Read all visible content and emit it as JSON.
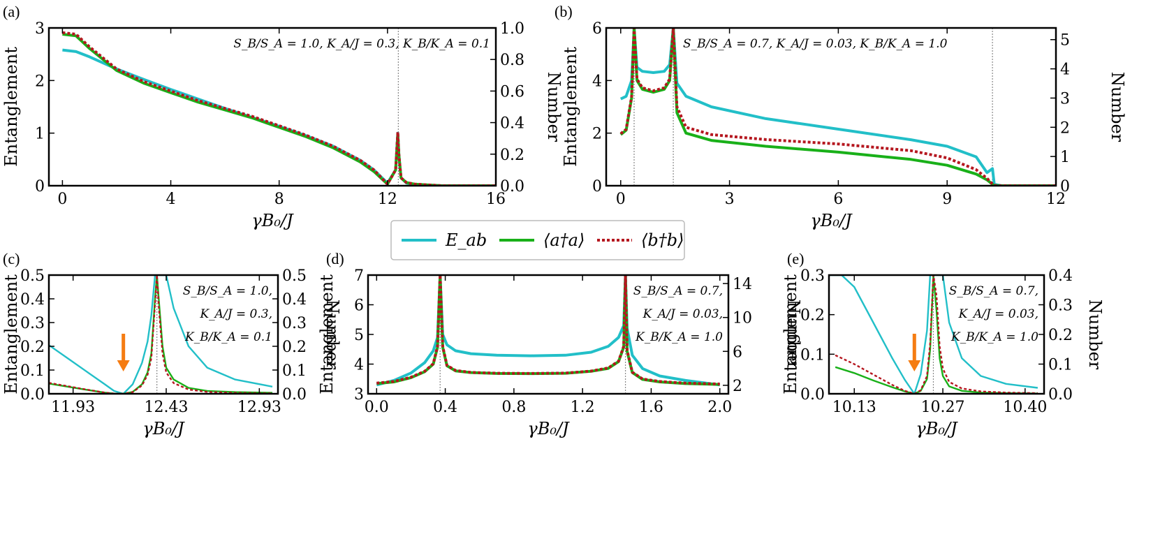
{
  "legend": {
    "items": [
      {
        "label": "E_ab",
        "color": "#22bfc8",
        "style": "solid"
      },
      {
        "label": "⟨a†a⟩",
        "color": "#19b019",
        "style": "solid"
      },
      {
        "label": "⟨b†b⟩",
        "color": "#b5171f",
        "style": "dotted"
      }
    ]
  },
  "chart_data": [
    {
      "id": "a",
      "panel_label": "(a)",
      "type": "line",
      "xlabel": "γB₀/J",
      "ylabel": "Entanglement",
      "ylabel_right": "Number",
      "xlim": [
        -0.5,
        16
      ],
      "ylim": [
        0,
        3
      ],
      "ylim_right": [
        0,
        1.0
      ],
      "xticks": [
        "0",
        "4",
        "8",
        "12",
        "16"
      ],
      "xtick_values": [
        0,
        4,
        8,
        12,
        16
      ],
      "yticks": [
        "0",
        "1",
        "2",
        "3"
      ],
      "ytick_values": [
        0,
        1,
        2,
        3
      ],
      "yticks_right": [
        "0.0",
        "0.2",
        "0.4",
        "0.6",
        "0.8",
        "1.0"
      ],
      "ytick_values_right": [
        0,
        0.2,
        0.4,
        0.6,
        0.8,
        1.0
      ],
      "vlines": [
        12.4
      ],
      "annotations": [
        "S_B/S_A = 1.0,  K_A/J = 0.3,  K_B/K_A = 0.1"
      ],
      "series": [
        {
          "name": "E_ab",
          "axis": "left",
          "x": [
            0,
            0.5,
            1,
            2,
            3,
            4,
            5,
            6,
            7,
            8,
            9,
            10,
            11,
            11.5,
            12.0,
            12.3,
            12.38,
            12.42,
            12.5,
            12.7,
            13,
            14,
            16
          ],
          "y": [
            2.58,
            2.55,
            2.45,
            2.22,
            2.02,
            1.83,
            1.65,
            1.47,
            1.3,
            1.13,
            0.95,
            0.75,
            0.48,
            0.3,
            0.05,
            0.3,
            1.0,
            0.6,
            0.15,
            0.05,
            0.02,
            0.0,
            0.0
          ]
        },
        {
          "name": "⟨a†a⟩",
          "axis": "right",
          "x": [
            0,
            0.5,
            1,
            2,
            3,
            4,
            5,
            6,
            7,
            8,
            9,
            10,
            11,
            11.5,
            12.0,
            12.3,
            12.38,
            12.42,
            12.5,
            12.7,
            13,
            14,
            16
          ],
          "y": [
            0.96,
            0.95,
            0.87,
            0.73,
            0.65,
            0.59,
            0.53,
            0.48,
            0.43,
            0.37,
            0.31,
            0.24,
            0.15,
            0.09,
            0.01,
            0.1,
            0.33,
            0.2,
            0.05,
            0.02,
            0.01,
            0.0,
            0.0
          ]
        },
        {
          "name": "⟨b†b⟩",
          "axis": "right",
          "x": [
            0,
            0.5,
            1,
            2,
            3,
            4,
            5,
            6,
            7,
            8,
            9,
            10,
            11,
            11.5,
            12.0,
            12.3,
            12.38,
            12.42,
            12.5,
            12.7,
            13,
            14,
            16
          ],
          "y": [
            0.97,
            0.96,
            0.88,
            0.74,
            0.66,
            0.6,
            0.54,
            0.49,
            0.44,
            0.38,
            0.32,
            0.25,
            0.16,
            0.1,
            0.01,
            0.1,
            0.34,
            0.2,
            0.05,
            0.02,
            0.01,
            0.0,
            0.0
          ]
        }
      ]
    },
    {
      "id": "b",
      "panel_label": "(b)",
      "type": "line",
      "xlabel": "γB₀/J",
      "ylabel": "Entanglement",
      "ylabel_right": "Number",
      "xlim": [
        -0.4,
        12
      ],
      "ylim": [
        0,
        6
      ],
      "ylim_right": [
        0,
        5.4
      ],
      "xticks": [
        "0",
        "3",
        "6",
        "9",
        "12"
      ],
      "xtick_values": [
        0,
        3,
        6,
        9,
        12
      ],
      "yticks": [
        "0",
        "2",
        "4",
        "6"
      ],
      "ytick_values": [
        0,
        2,
        4,
        6
      ],
      "yticks_right": [
        "0",
        "1",
        "2",
        "3",
        "4",
        "5"
      ],
      "ytick_values_right": [
        0,
        1,
        2,
        3,
        4,
        5
      ],
      "vlines": [
        0.37,
        1.45,
        10.25
      ],
      "annotations": [
        "S_B/S_A = 0.7,  K_A/J = 0.03,  K_B/K_A = 1.0"
      ],
      "series": [
        {
          "name": "E_ab",
          "axis": "left",
          "x": [
            0,
            0.15,
            0.3,
            0.37,
            0.45,
            0.6,
            0.9,
            1.2,
            1.35,
            1.45,
            1.55,
            1.8,
            2.5,
            4,
            6,
            8,
            9,
            9.8,
            10.1,
            10.25,
            10.3,
            10.5,
            12
          ],
          "y": [
            3.3,
            3.4,
            4.0,
            6.0,
            4.5,
            4.35,
            4.3,
            4.35,
            4.6,
            6.0,
            3.9,
            3.4,
            3.0,
            2.55,
            2.15,
            1.75,
            1.5,
            1.1,
            0.5,
            0.65,
            0.05,
            0.0,
            0.0
          ]
        },
        {
          "name": "⟨a†a⟩",
          "axis": "right",
          "x": [
            0,
            0.15,
            0.3,
            0.37,
            0.45,
            0.6,
            0.9,
            1.2,
            1.35,
            1.45,
            1.55,
            1.8,
            2.5,
            4,
            6,
            8,
            9,
            9.8,
            10.1,
            10.25,
            10.3,
            10.5,
            12
          ],
          "y": [
            1.75,
            1.9,
            3.0,
            5.4,
            3.6,
            3.3,
            3.2,
            3.3,
            3.6,
            5.4,
            2.5,
            1.8,
            1.55,
            1.35,
            1.15,
            0.9,
            0.7,
            0.4,
            0.2,
            0.05,
            0.01,
            0.0,
            0.0
          ]
        },
        {
          "name": "⟨b†b⟩",
          "axis": "right",
          "x": [
            0,
            0.15,
            0.3,
            0.37,
            0.45,
            0.6,
            0.9,
            1.2,
            1.35,
            1.45,
            1.55,
            1.8,
            2.5,
            4,
            6,
            8,
            9,
            9.8,
            10.1,
            10.25,
            10.3,
            10.5,
            12
          ],
          "y": [
            1.78,
            1.93,
            3.05,
            5.4,
            3.65,
            3.35,
            3.25,
            3.35,
            3.65,
            5.4,
            2.7,
            2.0,
            1.75,
            1.58,
            1.43,
            1.2,
            0.95,
            0.55,
            0.25,
            0.06,
            0.01,
            0.0,
            0.0
          ]
        }
      ]
    },
    {
      "id": "c",
      "panel_label": "(c)",
      "type": "line",
      "xlabel": "γB₀/J",
      "ylabel": "Entanglement",
      "ylabel_right": "Number",
      "xlim": [
        11.8,
        13.03
      ],
      "ylim": [
        0,
        0.5
      ],
      "ylim_right": [
        0,
        0.5
      ],
      "xticks": [
        "11.93",
        "12.43",
        "12.93"
      ],
      "xtick_values": [
        11.93,
        12.43,
        12.93
      ],
      "yticks": [
        "0.0",
        "0.1",
        "0.2",
        "0.3",
        "0.4",
        "0.5"
      ],
      "ytick_values": [
        0,
        0.1,
        0.2,
        0.3,
        0.4,
        0.5
      ],
      "yticks_right": [
        "0.0",
        "0.1",
        "0.2",
        "0.3",
        "0.4",
        "0.5"
      ],
      "ytick_values_right": [
        0,
        0.1,
        0.2,
        0.3,
        0.4,
        0.5
      ],
      "vlines": [
        12.38
      ],
      "arrow_x": 12.2,
      "annotations": [
        "S_B/S_A = 1.0,",
        "K_A/J = 0.3,",
        "K_B/K_A = 0.1"
      ],
      "series": [
        {
          "name": "E_ab",
          "axis": "left",
          "x": [
            11.8,
            11.9,
            12.0,
            12.1,
            12.15,
            12.2,
            12.25,
            12.3,
            12.33,
            12.35,
            12.37,
            12.38,
            12.4,
            12.43,
            12.47,
            12.55,
            12.65,
            12.8,
            13.0
          ],
          "y": [
            0.205,
            0.15,
            0.095,
            0.04,
            0.012,
            0.0,
            0.04,
            0.13,
            0.22,
            0.33,
            0.5,
            0.5,
            0.5,
            0.5,
            0.36,
            0.2,
            0.11,
            0.06,
            0.03
          ]
        },
        {
          "name": "⟨a†a⟩",
          "axis": "right",
          "x": [
            11.8,
            11.9,
            12.0,
            12.1,
            12.15,
            12.2,
            12.25,
            12.3,
            12.33,
            12.35,
            12.37,
            12.38,
            12.39,
            12.41,
            12.43,
            12.47,
            12.55,
            12.65,
            12.8,
            13.0
          ],
          "y": [
            0.043,
            0.03,
            0.017,
            0.005,
            0.001,
            0.0,
            0.008,
            0.04,
            0.09,
            0.17,
            0.4,
            0.5,
            0.4,
            0.2,
            0.11,
            0.06,
            0.025,
            0.012,
            0.007,
            0.004
          ]
        },
        {
          "name": "⟨b†b⟩",
          "axis": "right",
          "x": [
            11.8,
            11.9,
            12.0,
            12.1,
            12.15,
            12.2,
            12.25,
            12.3,
            12.33,
            12.35,
            12.37,
            12.38,
            12.39,
            12.41,
            12.43,
            12.47,
            12.55,
            12.65,
            12.8,
            13.0
          ],
          "y": [
            0.046,
            0.032,
            0.018,
            0.005,
            0.001,
            0.0,
            0.007,
            0.035,
            0.08,
            0.15,
            0.38,
            0.5,
            0.37,
            0.17,
            0.09,
            0.045,
            0.018,
            0.008,
            0.004,
            0.002
          ]
        }
      ]
    },
    {
      "id": "d",
      "panel_label": "(d)",
      "type": "line",
      "xlabel": "γB₀/J",
      "ylabel": "Entanglement",
      "ylabel_right": "Number",
      "xlim": [
        -0.05,
        2.05
      ],
      "ylim": [
        3,
        7
      ],
      "ylim_right": [
        1,
        15
      ],
      "xticks": [
        "0.0",
        "0.4",
        "0.8",
        "1.2",
        "1.6",
        "2.0"
      ],
      "xtick_values": [
        0,
        0.4,
        0.8,
        1.2,
        1.6,
        2.0
      ],
      "yticks": [
        "3",
        "4",
        "5",
        "6",
        "7"
      ],
      "ytick_values": [
        3,
        4,
        5,
        6,
        7
      ],
      "yticks_right": [
        "2",
        "6",
        "10",
        "14"
      ],
      "ytick_values_right": [
        2,
        6,
        10,
        14
      ],
      "vlines": [
        0.37,
        1.45
      ],
      "annotations": [
        "S_B/S_A = 0.7,",
        "K_A/J = 0.03,",
        "K_B/K_A = 1.0"
      ],
      "series": [
        {
          "name": "E_ab",
          "axis": "left",
          "x": [
            0,
            0.1,
            0.2,
            0.28,
            0.33,
            0.355,
            0.37,
            0.385,
            0.41,
            0.46,
            0.55,
            0.7,
            0.9,
            1.1,
            1.25,
            1.35,
            1.41,
            1.44,
            1.45,
            1.46,
            1.49,
            1.55,
            1.65,
            1.8,
            2.0
          ],
          "y": [
            3.3,
            3.45,
            3.7,
            4.05,
            4.45,
            4.9,
            7.0,
            5.0,
            4.65,
            4.45,
            4.35,
            4.3,
            4.28,
            4.3,
            4.4,
            4.6,
            4.9,
            5.3,
            7.0,
            5.2,
            4.3,
            3.85,
            3.6,
            3.45,
            3.3
          ]
        },
        {
          "name": "⟨a†a⟩",
          "axis": "right",
          "x": [
            0,
            0.1,
            0.2,
            0.28,
            0.33,
            0.355,
            0.37,
            0.385,
            0.41,
            0.46,
            0.55,
            0.7,
            0.9,
            1.1,
            1.25,
            1.35,
            1.41,
            1.44,
            1.45,
            1.46,
            1.49,
            1.55,
            1.65,
            1.8,
            2.0
          ],
          "y": [
            2.2,
            2.4,
            2.9,
            3.6,
            4.5,
            6.5,
            15.0,
            6.5,
            4.3,
            3.7,
            3.5,
            3.4,
            3.38,
            3.42,
            3.65,
            4.0,
            4.8,
            6.5,
            15.0,
            6.0,
            3.5,
            2.7,
            2.4,
            2.2,
            2.1
          ]
        },
        {
          "name": "⟨b†b⟩",
          "axis": "right",
          "x": [
            0,
            0.1,
            0.2,
            0.28,
            0.33,
            0.355,
            0.37,
            0.385,
            0.41,
            0.46,
            0.55,
            0.7,
            0.9,
            1.1,
            1.25,
            1.35,
            1.41,
            1.44,
            1.45,
            1.46,
            1.49,
            1.55,
            1.65,
            1.8,
            2.0
          ],
          "y": [
            2.25,
            2.45,
            2.95,
            3.65,
            4.55,
            6.6,
            15.0,
            6.6,
            4.35,
            3.75,
            3.52,
            3.42,
            3.4,
            3.44,
            3.68,
            4.05,
            4.85,
            6.6,
            15.0,
            6.1,
            3.55,
            2.75,
            2.45,
            2.25,
            2.15
          ]
        }
      ]
    },
    {
      "id": "e",
      "panel_label": "(e)",
      "type": "line",
      "xlabel": "γB₀/J",
      "ylabel": "Entanglement",
      "ylabel_right": "Number",
      "xlim": [
        10.09,
        10.43
      ],
      "ylim": [
        0,
        0.3
      ],
      "ylim_right": [
        0,
        0.4
      ],
      "xticks": [
        "10.13",
        "10.27",
        "10.40"
      ],
      "xtick_values": [
        10.13,
        10.27,
        10.4
      ],
      "yticks": [
        "0.0",
        "0.1",
        "0.2",
        "0.3"
      ],
      "ytick_values": [
        0,
        0.1,
        0.2,
        0.3
      ],
      "yticks_right": [
        "0.0",
        "0.1",
        "0.2",
        "0.3",
        "0.4"
      ],
      "ytick_values_right": [
        0,
        0.1,
        0.2,
        0.3,
        0.4
      ],
      "vlines": [
        10.255
      ],
      "arrow_x": 10.225,
      "annotations": [
        "S_B/S_A = 0.7,",
        "K_A/J = 0.03,",
        "K_B/K_A = 1.0"
      ],
      "series": [
        {
          "name": "E_ab",
          "axis": "left",
          "x": [
            10.09,
            10.11,
            10.13,
            10.15,
            10.17,
            10.19,
            10.21,
            10.225,
            10.235,
            10.245,
            10.25,
            10.255,
            10.26,
            10.265,
            10.27,
            10.28,
            10.3,
            10.33,
            10.37,
            10.42
          ],
          "y": [
            0.3,
            0.3,
            0.27,
            0.21,
            0.15,
            0.09,
            0.035,
            0.0,
            0.05,
            0.16,
            0.3,
            0.3,
            0.3,
            0.3,
            0.3,
            0.18,
            0.09,
            0.045,
            0.025,
            0.015
          ]
        },
        {
          "name": "⟨a†a⟩",
          "axis": "right",
          "x": [
            10.1,
            10.13,
            10.16,
            10.19,
            10.21,
            10.225,
            10.235,
            10.245,
            10.25,
            10.255,
            10.26,
            10.265,
            10.27,
            10.28,
            10.3,
            10.33,
            10.37,
            10.42
          ],
          "y": [
            0.09,
            0.07,
            0.045,
            0.022,
            0.008,
            0.0,
            0.01,
            0.05,
            0.15,
            0.4,
            0.28,
            0.12,
            0.06,
            0.025,
            0.01,
            0.004,
            0.002,
            0.001
          ]
        },
        {
          "name": "⟨b†b⟩",
          "axis": "right",
          "x": [
            10.1,
            10.13,
            10.16,
            10.19,
            10.21,
            10.225,
            10.235,
            10.245,
            10.25,
            10.255,
            10.26,
            10.265,
            10.27,
            10.28,
            10.3,
            10.33,
            10.37,
            10.42
          ],
          "y": [
            0.13,
            0.1,
            0.065,
            0.03,
            0.01,
            0.0,
            0.012,
            0.06,
            0.17,
            0.4,
            0.33,
            0.16,
            0.085,
            0.04,
            0.018,
            0.008,
            0.004,
            0.002
          ]
        }
      ]
    }
  ]
}
